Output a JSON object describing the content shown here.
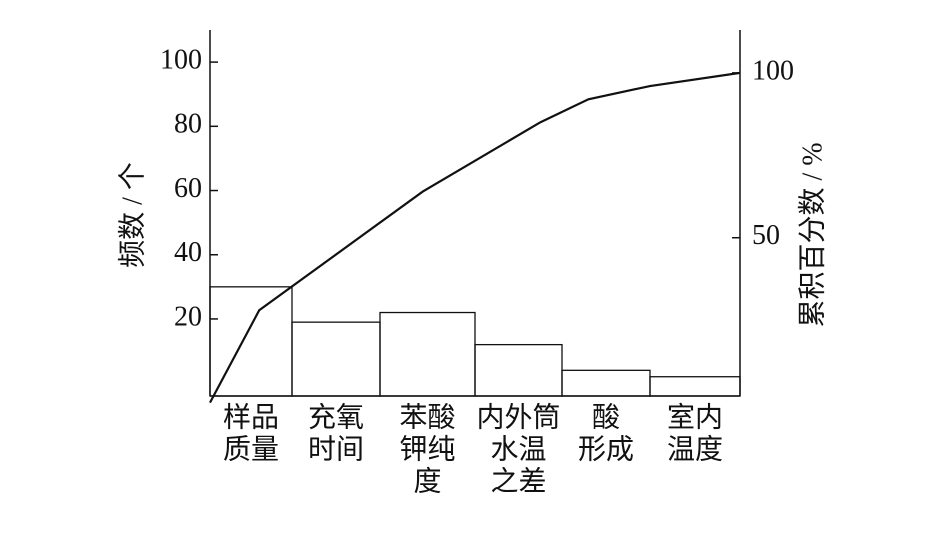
{
  "chart_data": {
    "type": "pareto",
    "ylabel": "频数 / 个",
    "y2label": "累积百分数 / %",
    "categories": [
      [
        "样品",
        "质量"
      ],
      [
        "充氧",
        "时间"
      ],
      [
        "苯酸",
        "钾纯",
        "度"
      ],
      [
        "内外筒",
        "水温",
        "之差"
      ],
      [
        "酸",
        "形成"
      ],
      [
        "室内",
        "温度"
      ]
    ],
    "values": [
      30,
      19,
      22,
      12,
      4,
      2
    ],
    "line_x": [
      0,
      0.6,
      2.45,
      3.75,
      4.3,
      5,
      6
    ],
    "line_values": [
      0,
      28,
      64,
      85,
      92,
      96,
      100
    ],
    "ylim": [
      -4,
      110
    ],
    "yticks": [
      20,
      40,
      60,
      80,
      100
    ],
    "y2lim": [
      2,
      113
    ],
    "y2ticks": [
      50,
      100
    ],
    "color": "#111111"
  }
}
